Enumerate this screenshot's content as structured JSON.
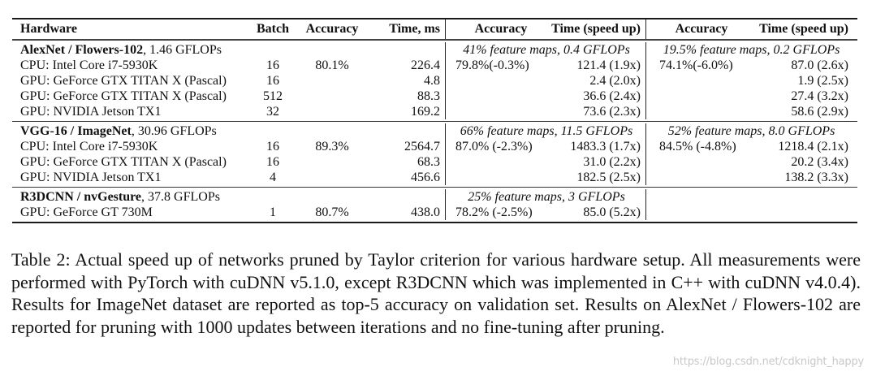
{
  "table": {
    "headers": {
      "hardware": "Hardware",
      "batch": "Batch",
      "accuracy": "Accuracy",
      "time": "Time, ms",
      "pruned1_accuracy": "Accuracy",
      "pruned1_time": "Time (speed up)",
      "pruned2_accuracy": "Accuracy",
      "pruned2_time": "Time (speed up)"
    },
    "groups": [
      {
        "name": "AlexNet / Flowers-102",
        "flops": ", 1.46 GFLOPs",
        "pruned1_label": "41% feature maps, 0.4 GFLOPs",
        "pruned2_label": "19.5% feature maps, 0.2 GFLOPs",
        "rows": [
          {
            "hardware": "CPU: Intel Core i7-5930K",
            "batch": "16",
            "accuracy": "80.1%",
            "time": "226.4",
            "p1_acc": "79.8%(-0.3%)",
            "p1_time": "121.4 (1.9x)",
            "p2_acc": "74.1%(-6.0%)",
            "p2_time": "87.0 (2.6x)"
          },
          {
            "hardware": "GPU: GeForce GTX TITAN X (Pascal)",
            "batch": "16",
            "accuracy": "",
            "time": "4.8",
            "p1_acc": "",
            "p1_time": "2.4 (2.0x)",
            "p2_acc": "",
            "p2_time": "1.9 (2.5x)"
          },
          {
            "hardware": "GPU: GeForce GTX TITAN X (Pascal)",
            "batch": "512",
            "accuracy": "",
            "time": "88.3",
            "p1_acc": "",
            "p1_time": "36.6 (2.4x)",
            "p2_acc": "",
            "p2_time": "27.4 (3.2x)"
          },
          {
            "hardware": "GPU: NVIDIA Jetson TX1",
            "batch": "32",
            "accuracy": "",
            "time": "169.2",
            "p1_acc": "",
            "p1_time": "73.6 (2.3x)",
            "p2_acc": "",
            "p2_time": "58.6 (2.9x)"
          }
        ]
      },
      {
        "name": "VGG-16 / ImageNet",
        "flops": ", 30.96 GFLOPs",
        "pruned1_label": "66% feature maps, 11.5 GFLOPs",
        "pruned2_label": "52% feature maps, 8.0 GFLOPs",
        "rows": [
          {
            "hardware": "CPU: Intel Core i7-5930K",
            "batch": "16",
            "accuracy": "89.3%",
            "time": "2564.7",
            "p1_acc": "87.0% (-2.3%)",
            "p1_time": "1483.3 (1.7x)",
            "p2_acc": "84.5% (-4.8%)",
            "p2_time": "1218.4 (2.1x)"
          },
          {
            "hardware": "GPU: GeForce GTX TITAN X (Pascal)",
            "batch": "16",
            "accuracy": "",
            "time": "68.3",
            "p1_acc": "",
            "p1_time": "31.0 (2.2x)",
            "p2_acc": "",
            "p2_time": "20.2 (3.4x)"
          },
          {
            "hardware": "GPU: NVIDIA Jetson TX1",
            "batch": "4",
            "accuracy": "",
            "time": "456.6",
            "p1_acc": "",
            "p1_time": "182.5 (2.5x)",
            "p2_acc": "",
            "p2_time": "138.2 (3.3x)"
          }
        ]
      },
      {
        "name": "R3DCNN / nvGesture",
        "flops": ", 37.8 GFLOPs",
        "pruned1_label": "25% feature maps, 3 GFLOPs",
        "pruned2_label": "",
        "rows": [
          {
            "hardware": "GPU: GeForce GT 730M",
            "batch": "1",
            "accuracy": "80.7%",
            "time": "438.0",
            "p1_acc": "78.2% (-2.5%)",
            "p1_time": "85.0 (5.2x)",
            "p2_acc": "",
            "p2_time": ""
          }
        ]
      }
    ]
  },
  "caption": "Table 2: Actual speed up of networks pruned by Taylor criterion for various hardware setup. All measurements were performed with PyTorch with cuDNN v5.1.0, except R3DCNN which was implemented in C++ with cuDNN v4.0.4). Results for ImageNet dataset are reported as top-5 accuracy on validation set. Results on AlexNet / Flowers-102 are reported for pruning with 1000 updates between iterations and no fine-tuning after pruning.",
  "watermark": "https://blog.csdn.net/cdknight_happy"
}
